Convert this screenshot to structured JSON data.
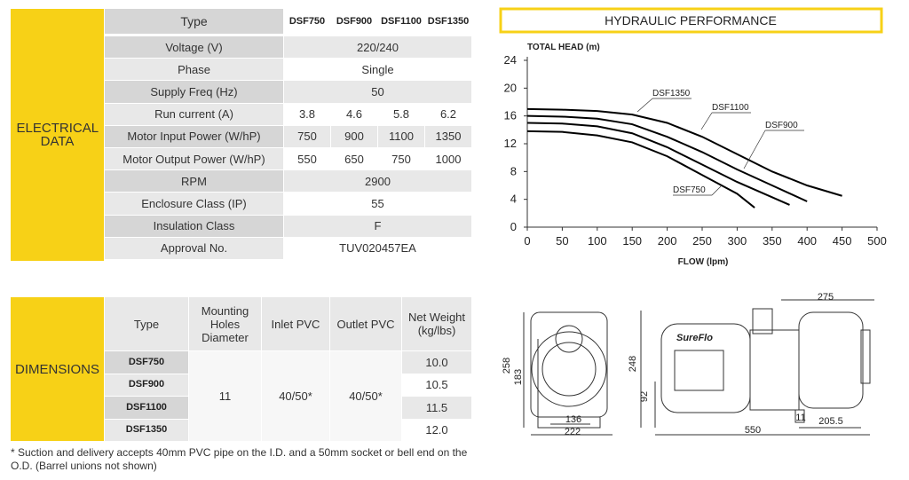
{
  "electrical": {
    "section": "ELECTRICAL DATA",
    "header": [
      "Type",
      "DSF750",
      "DSF900",
      "DSF1100",
      "DSF1350"
    ],
    "rows": [
      {
        "label": "Voltage (V)",
        "values": [
          "220/240"
        ]
      },
      {
        "label": "Phase",
        "values": [
          "Single"
        ]
      },
      {
        "label": "Supply Freq (Hz)",
        "values": [
          "50"
        ]
      },
      {
        "label": "Run current (A)",
        "values": [
          "3.8",
          "4.6",
          "5.8",
          "6.2"
        ]
      },
      {
        "label": "Motor Input Power (W/hP)",
        "values": [
          "750",
          "900",
          "1100",
          "1350"
        ]
      },
      {
        "label": "Motor Output Power (W/hP)",
        "values": [
          "550",
          "650",
          "750",
          "1000"
        ]
      },
      {
        "label": "RPM",
        "values": [
          "2900"
        ]
      },
      {
        "label": "Enclosure Class (IP)",
        "values": [
          "55"
        ]
      },
      {
        "label": "Insulation Class",
        "values": [
          "F"
        ]
      },
      {
        "label": "Approval No.",
        "values": [
          "TUV020457EA"
        ]
      }
    ]
  },
  "chart_data": {
    "type": "line",
    "title": "HYDRAULIC PERFORMANCE",
    "y_label": "TOTAL HEAD (m)",
    "x_label": "FLOW (lpm)",
    "xlim": [
      0,
      500
    ],
    "ylim": [
      0,
      24
    ],
    "xticks": [
      0,
      50,
      100,
      150,
      200,
      250,
      300,
      350,
      400,
      450,
      500
    ],
    "yticks": [
      0,
      4,
      8,
      12,
      16,
      20,
      24
    ],
    "series": [
      {
        "name": "DSF1350",
        "color": "#000000",
        "x": [
          0,
          50,
          100,
          150,
          200,
          250,
          300,
          350,
          400,
          450
        ],
        "values": [
          17,
          16.9,
          16.7,
          16.2,
          15,
          13,
          10.5,
          8,
          6,
          4.5
        ]
      },
      {
        "name": "DSF1100",
        "color": "#000000",
        "x": [
          0,
          50,
          100,
          150,
          200,
          250,
          300,
          350,
          400
        ],
        "values": [
          16,
          15.9,
          15.6,
          14.8,
          13,
          10.8,
          8.3,
          6,
          3.7
        ]
      },
      {
        "name": "DSF900",
        "color": "#000000",
        "x": [
          0,
          50,
          100,
          150,
          200,
          250,
          300,
          350,
          375
        ],
        "values": [
          15,
          14.9,
          14.5,
          13.5,
          11.5,
          9,
          6.5,
          4.3,
          3.2
        ]
      },
      {
        "name": "DSF750",
        "color": "#000000",
        "x": [
          0,
          50,
          100,
          150,
          200,
          250,
          300,
          325
        ],
        "values": [
          13.8,
          13.7,
          13.2,
          12.2,
          10.2,
          7.5,
          4.8,
          2.8
        ]
      }
    ]
  },
  "dimensions": {
    "section": "DIMENSIONS",
    "header": [
      "Type",
      "Mounting Holes Diameter",
      "Inlet PVC",
      "Outlet PVC",
      "Net Weight (kg/lbs)"
    ],
    "types": [
      "DSF750",
      "DSF900",
      "DSF1100",
      "DSF1350"
    ],
    "mounting": "11",
    "inlet": "40/50*",
    "outlet": "40/50*",
    "weights": [
      "10.0",
      "10.5",
      "11.5",
      "12.0"
    ]
  },
  "footnote": "* Suction and delivery accepts 40mm PVC pipe on the I.D. and a 50mm socket or bell end on the O.D. (Barrel unions not shown)",
  "drawing": {
    "brand": "SureFlo",
    "dims": [
      "275",
      "258",
      "183",
      "248",
      "92",
      "136",
      "222",
      "550",
      "205.5",
      "11"
    ]
  }
}
